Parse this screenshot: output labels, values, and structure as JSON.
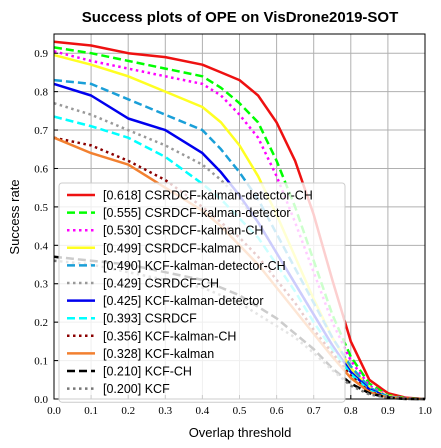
{
  "chart_data": {
    "type": "line",
    "title": "Success plots of OPE on VisDrone2019-SOT",
    "xlabel": "Overlap threshold",
    "ylabel": "Success rate",
    "xlim": [
      0,
      1
    ],
    "ylim": [
      0,
      0.95
    ],
    "xticks": [
      "0.0",
      "0.1",
      "0.2",
      "0.3",
      "0.4",
      "0.5",
      "0.6",
      "0.7",
      "0.8",
      "0.9",
      "1.0"
    ],
    "yticks": [
      "0.0",
      "0.1",
      "0.2",
      "0.3",
      "0.4",
      "0.5",
      "0.6",
      "0.7",
      "0.8",
      "0.9"
    ],
    "grid": true,
    "legend_position": "lower-left",
    "x": [
      0,
      0.1,
      0.2,
      0.3,
      0.4,
      0.45,
      0.5,
      0.55,
      0.6,
      0.65,
      0.7,
      0.75,
      0.8,
      0.85,
      0.9,
      0.95,
      1.0
    ],
    "series": [
      {
        "name": "[0.618] CSRDCF-kalman-detector-CH",
        "color": "#ee1111",
        "dash": "solid",
        "values": [
          0.93,
          0.92,
          0.9,
          0.89,
          0.87,
          0.85,
          0.83,
          0.79,
          0.72,
          0.62,
          0.48,
          0.31,
          0.15,
          0.05,
          0.015,
          0.003,
          0.0
        ]
      },
      {
        "name": "[0.555] CSRDCF-kalman-detector",
        "color": "#00ff00",
        "dash": "dashed",
        "values": [
          0.915,
          0.9,
          0.88,
          0.86,
          0.84,
          0.81,
          0.77,
          0.72,
          0.62,
          0.5,
          0.36,
          0.22,
          0.11,
          0.04,
          0.01,
          0.002,
          0.0
        ]
      },
      {
        "name": "[0.530] CSRDCF-kalman-CH",
        "color": "#ff00ff",
        "dash": "dotted",
        "values": [
          0.905,
          0.88,
          0.86,
          0.84,
          0.82,
          0.79,
          0.74,
          0.68,
          0.58,
          0.46,
          0.33,
          0.2,
          0.1,
          0.035,
          0.008,
          0.002,
          0.0
        ]
      },
      {
        "name": "[0.499] CSRDCF-kalman",
        "color": "#ffff22",
        "dash": "solid",
        "values": [
          0.895,
          0.87,
          0.84,
          0.8,
          0.76,
          0.72,
          0.66,
          0.58,
          0.48,
          0.37,
          0.26,
          0.16,
          0.08,
          0.03,
          0.007,
          0.001,
          0.0
        ]
      },
      {
        "name": "[0.490] KCF-kalman-detector-CH",
        "color": "#1a9fd8",
        "dash": "dashed",
        "values": [
          0.83,
          0.82,
          0.78,
          0.74,
          0.7,
          0.65,
          0.59,
          0.52,
          0.43,
          0.34,
          0.25,
          0.16,
          0.085,
          0.03,
          0.006,
          0.001,
          0.0
        ]
      },
      {
        "name": "[0.429] CSRDCF-CH",
        "color": "#999999",
        "dash": "dotted",
        "values": [
          0.77,
          0.74,
          0.7,
          0.66,
          0.61,
          0.57,
          0.52,
          0.46,
          0.38,
          0.3,
          0.22,
          0.14,
          0.07,
          0.025,
          0.005,
          0.001,
          0.0
        ]
      },
      {
        "name": "[0.425] KCF-kalman-detector",
        "color": "#0000ee",
        "dash": "solid",
        "values": [
          0.82,
          0.79,
          0.73,
          0.7,
          0.64,
          0.59,
          0.53,
          0.46,
          0.38,
          0.3,
          0.22,
          0.14,
          0.07,
          0.025,
          0.005,
          0.001,
          0.0
        ]
      },
      {
        "name": "[0.393] CSRDCF",
        "color": "#00ffff",
        "dash": "dashed",
        "values": [
          0.735,
          0.71,
          0.68,
          0.63,
          0.56,
          0.52,
          0.47,
          0.42,
          0.35,
          0.28,
          0.2,
          0.13,
          0.065,
          0.022,
          0.005,
          0.001,
          0.0
        ]
      },
      {
        "name": "[0.356] KCF-kalman-CH",
        "color": "#8b0000",
        "dash": "dotted",
        "values": [
          0.68,
          0.66,
          0.62,
          0.57,
          0.5,
          0.46,
          0.42,
          0.37,
          0.31,
          0.25,
          0.18,
          0.12,
          0.06,
          0.02,
          0.004,
          0.001,
          0.0
        ]
      },
      {
        "name": "[0.328] KCF-kalman",
        "color": "#f28030",
        "dash": "solid",
        "values": [
          0.68,
          0.64,
          0.61,
          0.55,
          0.49,
          0.45,
          0.4,
          0.35,
          0.29,
          0.23,
          0.17,
          0.11,
          0.055,
          0.018,
          0.004,
          0.001,
          0.0
        ]
      },
      {
        "name": "[0.210] KCF-CH",
        "color": "#000000",
        "dash": "dashed",
        "values": [
          0.37,
          0.36,
          0.35,
          0.33,
          0.31,
          0.29,
          0.27,
          0.24,
          0.21,
          0.17,
          0.13,
          0.08,
          0.04,
          0.015,
          0.003,
          0.0,
          0.0
        ]
      },
      {
        "name": "[0.200] KCF",
        "color": "#777777",
        "dash": "dotted",
        "values": [
          0.36,
          0.35,
          0.33,
          0.31,
          0.29,
          0.27,
          0.25,
          0.22,
          0.19,
          0.16,
          0.12,
          0.075,
          0.035,
          0.012,
          0.003,
          0.0,
          0.0
        ]
      }
    ]
  }
}
